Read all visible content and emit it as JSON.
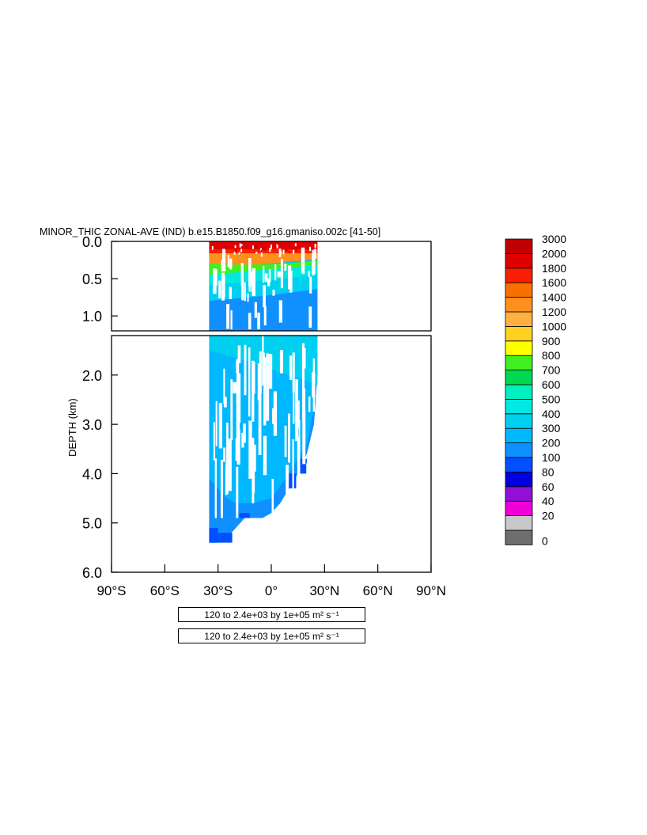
{
  "chart_data": {
    "type": "heatmap",
    "title": "MINOR_THIC ZONAL-AVE (IND) b.e15.B1850.f09_g16.gmaniso.002c [41-50]",
    "xlabel": "",
    "ylabel": "DEPTH (km)",
    "x_ticks": [
      "90°S",
      "60°S",
      "30°S",
      "0°",
      "30°N",
      "60°N",
      "90°N"
    ],
    "x_tick_values": [
      -90,
      -60,
      -30,
      0,
      30,
      60,
      90
    ],
    "xlim": [
      -90,
      90
    ],
    "upper_panel": {
      "ylim": [
        0,
        1.2
      ],
      "y_ticks": [
        "0.0",
        "0.5",
        "1.0"
      ],
      "y_tick_values": [
        0,
        0.5,
        1.0
      ]
    },
    "lower_panel": {
      "ylim": [
        1.2,
        6.0
      ],
      "y_ticks": [
        "2.0",
        "3.0",
        "4.0",
        "5.0",
        "6.0"
      ],
      "y_tick_values": [
        2.0,
        3.0,
        4.0,
        5.0,
        6.0
      ]
    },
    "colorbar": {
      "levels": [
        "0",
        "20",
        "40",
        "60",
        "80",
        "100",
        "200",
        "300",
        "400",
        "500",
        "600",
        "700",
        "800",
        "900",
        "1000",
        "1200",
        "1400",
        "1600",
        "1800",
        "2000",
        "3000"
      ],
      "colors": [
        "#6e6e6e",
        "#c8c8c8",
        "#f000d8",
        "#9010d8",
        "#0000e0",
        "#0050ff",
        "#1090ff",
        "#00b8ff",
        "#00d0f0",
        "#00e8e0",
        "#00f0c0",
        "#00d850",
        "#40f020",
        "#ffff00",
        "#ffd020",
        "#ffb040",
        "#ff9020",
        "#f87000",
        "#f82000",
        "#e00000",
        "#c00000"
      ]
    },
    "basin_extent_lat": [
      -35,
      26
    ],
    "surface_values_approx": [
      2000,
      1600,
      800,
      400,
      300,
      300
    ],
    "deep_values_approx": [
      300,
      200,
      200,
      100
    ]
  },
  "info_boxes": [
    {
      "text": "120 to 2.4e+03 by 1e+05 m² s⁻¹"
    },
    {
      "text": "120 to 2.4e+03 by 1e+05 m² s⁻¹"
    }
  ]
}
